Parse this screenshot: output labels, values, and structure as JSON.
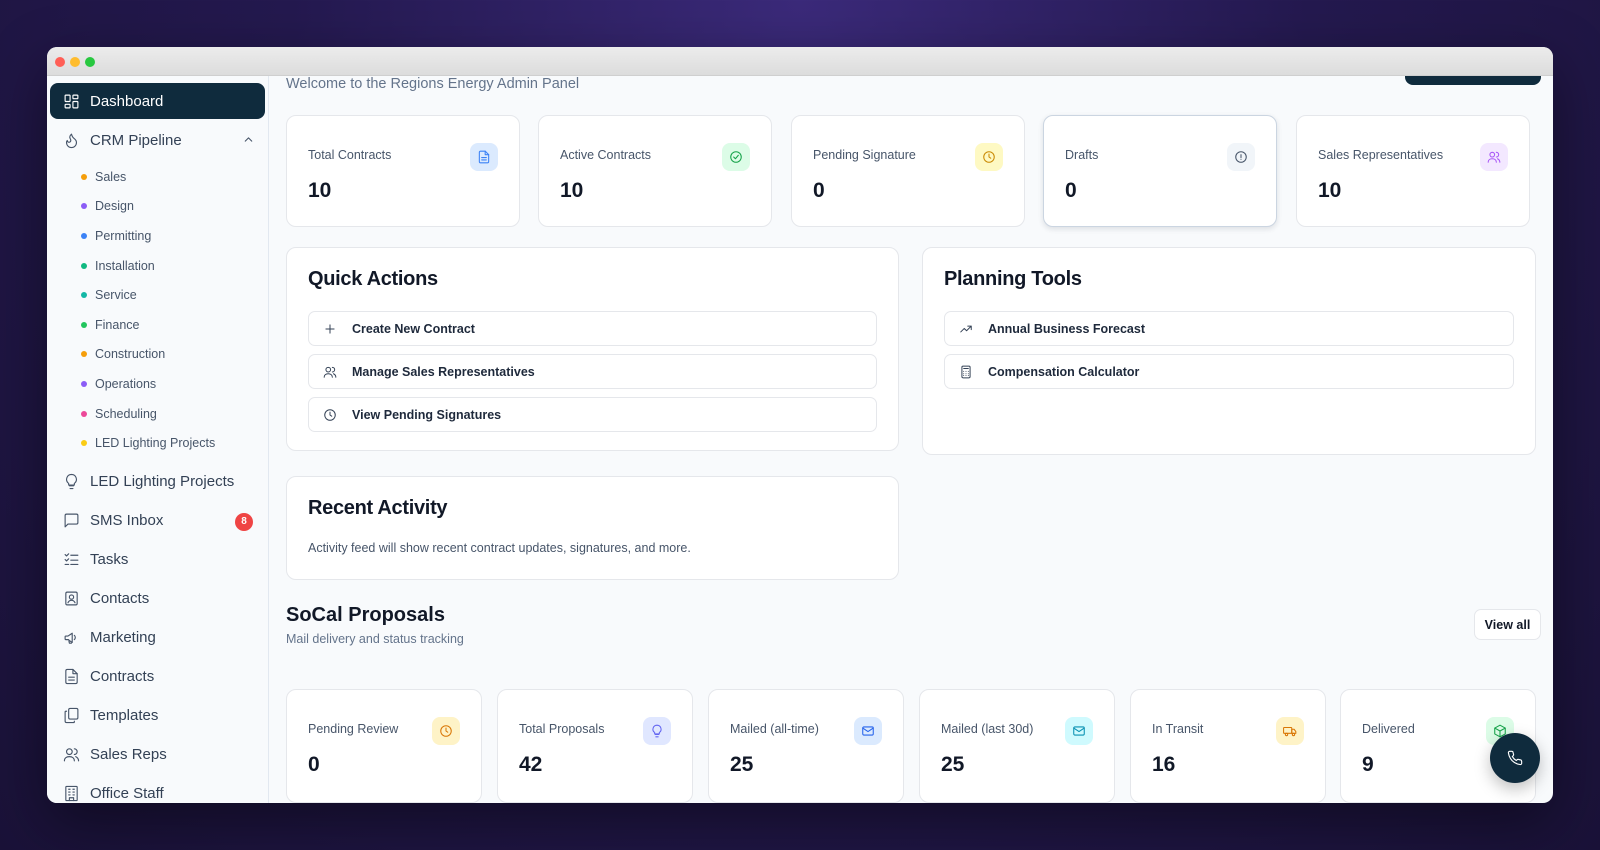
{
  "window": {
    "controls": [
      "close",
      "minimize",
      "maximize"
    ]
  },
  "sidebar": {
    "dashboard": {
      "label": "Dashboard",
      "icon": "dashboard-icon"
    },
    "crm": {
      "label": "CRM Pipeline",
      "icon": "flame-icon"
    },
    "crm_stages": [
      {
        "label": "Sales",
        "color": "#f59e0b"
      },
      {
        "label": "Design",
        "color": "#8b5cf6"
      },
      {
        "label": "Permitting",
        "color": "#3b82f6"
      },
      {
        "label": "Installation",
        "color": "#10b981"
      },
      {
        "label": "Service",
        "color": "#14b8a6"
      },
      {
        "label": "Finance",
        "color": "#22c55e"
      },
      {
        "label": "Construction",
        "color": "#f59e0b"
      },
      {
        "label": "Operations",
        "color": "#8b5cf6"
      },
      {
        "label": "Scheduling",
        "color": "#ec4899"
      },
      {
        "label": "LED Lighting Projects",
        "color": "#facc15"
      }
    ],
    "items": [
      {
        "label": "LED Lighting Projects",
        "icon": "lightbulb-icon"
      },
      {
        "label": "SMS Inbox",
        "icon": "message-icon",
        "badge": "8"
      },
      {
        "label": "Tasks",
        "icon": "tasks-icon"
      },
      {
        "label": "Contacts",
        "icon": "contact-icon"
      },
      {
        "label": "Marketing",
        "icon": "megaphone-icon"
      },
      {
        "label": "Contracts",
        "icon": "document-icon"
      },
      {
        "label": "Templates",
        "icon": "templates-icon"
      },
      {
        "label": "Sales Reps",
        "icon": "users-icon"
      },
      {
        "label": "Office Staff",
        "icon": "building-icon"
      }
    ]
  },
  "header": {
    "welcome": "Welcome to the Regions Energy Admin Panel"
  },
  "stats": [
    {
      "label": "Total Contracts",
      "value": "10",
      "icon": "document-icon",
      "bg": "#dbeafe",
      "fg": "#3b82f6"
    },
    {
      "label": "Active Contracts",
      "value": "10",
      "icon": "check-circle-icon",
      "bg": "#dcfce7",
      "fg": "#16a34a"
    },
    {
      "label": "Pending Signature",
      "value": "0",
      "icon": "clock-icon",
      "bg": "#fef9c3",
      "fg": "#ca8a04"
    },
    {
      "label": "Drafts",
      "value": "0",
      "icon": "alert-circle-icon",
      "bg": "#f1f5f9",
      "fg": "#475569"
    },
    {
      "label": "Sales Representatives",
      "value": "10",
      "icon": "users-icon",
      "bg": "#f3e8ff",
      "fg": "#a855f7"
    }
  ],
  "quick_actions": {
    "title": "Quick Actions",
    "items": [
      {
        "label": "Create New Contract",
        "icon": "plus-icon"
      },
      {
        "label": "Manage Sales Representatives",
        "icon": "users-icon"
      },
      {
        "label": "View Pending Signatures",
        "icon": "clock-icon"
      }
    ]
  },
  "planning_tools": {
    "title": "Planning Tools",
    "items": [
      {
        "label": "Annual Business Forecast",
        "icon": "trending-up-icon"
      },
      {
        "label": "Compensation Calculator",
        "icon": "calculator-icon"
      }
    ]
  },
  "recent_activity": {
    "title": "Recent Activity",
    "text": "Activity feed will show recent contract updates, signatures, and more."
  },
  "proposals": {
    "title": "SoCal Proposals",
    "subtitle": "Mail delivery and status tracking",
    "view_all": "View all",
    "stats": [
      {
        "label": "Pending Review",
        "value": "0",
        "icon": "clock-icon",
        "bg": "#fef3c7",
        "fg": "#d97706"
      },
      {
        "label": "Total Proposals",
        "value": "42",
        "icon": "lightbulb-icon",
        "bg": "#e0e7ff",
        "fg": "#6366f1"
      },
      {
        "label": "Mailed (all-time)",
        "value": "25",
        "icon": "mail-icon",
        "bg": "#dbeafe",
        "fg": "#2563eb"
      },
      {
        "label": "Mailed (last 30d)",
        "value": "25",
        "icon": "mail-icon",
        "bg": "#cffafe",
        "fg": "#0891b2"
      },
      {
        "label": "In Transit",
        "value": "16",
        "icon": "truck-icon",
        "bg": "#fef3c7",
        "fg": "#d97706"
      },
      {
        "label": "Delivered",
        "value": "9",
        "icon": "package-icon",
        "bg": "#dcfce7",
        "fg": "#16a34a"
      }
    ]
  },
  "fab": {
    "icon": "phone-icon"
  }
}
